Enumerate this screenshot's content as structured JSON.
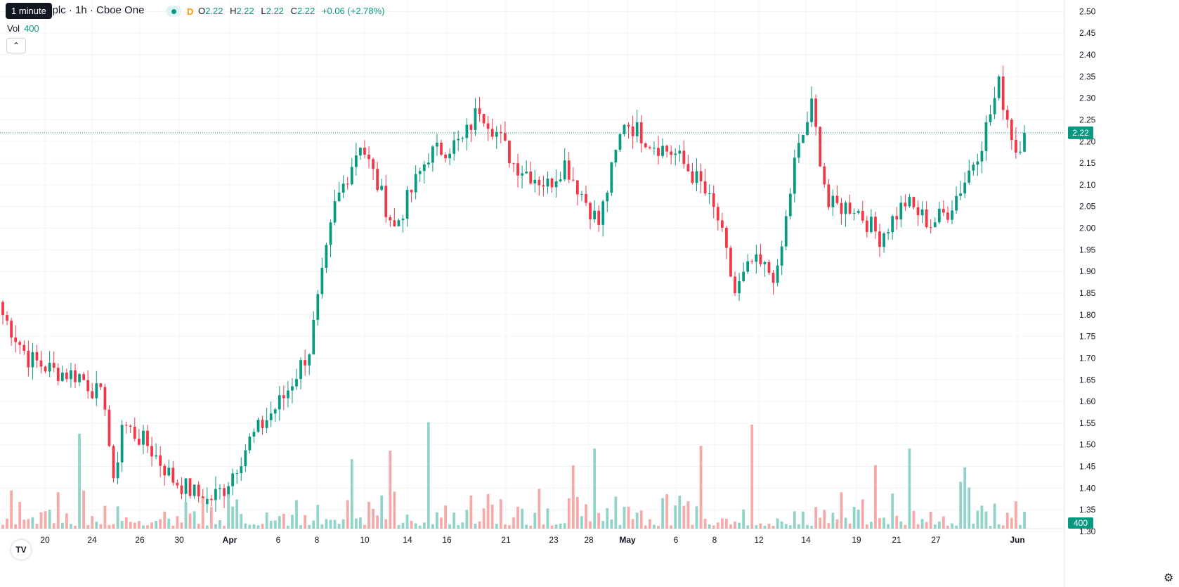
{
  "header": {
    "tooltip": "1 minute",
    "title": "a plc · 1h · Cboe One",
    "interval_letter": "D",
    "ohlc": {
      "o_label": "O",
      "o": "2.22",
      "h_label": "H",
      "h": "2.22",
      "l_label": "L",
      "l": "2.22",
      "c_label": "C",
      "c": "2.22",
      "change": "+0.06 (+2.78%)"
    },
    "volume_label": "Vol",
    "volume_value": "400",
    "collapse_icon": "chevron-up-icon"
  },
  "footer": {
    "logo_text": "TV",
    "settings_icon": "gear-icon"
  },
  "colors": {
    "up": "#089981",
    "down": "#f23645",
    "vol_up": "#8fd3c9",
    "vol_down": "#f7a9a7",
    "grid": "#f0f3fa",
    "price_line": "#089981"
  },
  "chart_data": {
    "type": "candlestick",
    "y_axis": {
      "min": 1.24,
      "max": 2.52,
      "ticks": [
        "2.50",
        "2.45",
        "2.40",
        "2.35",
        "2.30",
        "2.25",
        "2.20",
        "2.15",
        "2.10",
        "2.05",
        "2.00",
        "1.95",
        "1.90",
        "1.85",
        "1.80",
        "1.75",
        "1.70",
        "1.65",
        "1.60",
        "1.55",
        "1.50",
        "1.45",
        "1.40",
        "1.35",
        "1.30"
      ]
    },
    "x_axis": {
      "labels": [
        "20",
        "24",
        "26",
        "30",
        "Apr",
        "6",
        "8",
        "10",
        "14",
        "16",
        "21",
        "23",
        "28",
        "May",
        "6",
        "8",
        "12",
        "14",
        "19",
        "21",
        "27",
        "Jun"
      ]
    },
    "last_price": "2.22",
    "last_volume": "400",
    "anchors": [
      {
        "i": 0,
        "c": 1.8
      },
      {
        "i": 6,
        "c": 1.7
      },
      {
        "i": 12,
        "c": 1.67
      },
      {
        "i": 18,
        "c": 1.66
      },
      {
        "i": 24,
        "c": 1.6
      },
      {
        "i": 26,
        "c": 1.4
      },
      {
        "i": 28,
        "c": 1.55
      },
      {
        "i": 34,
        "c": 1.5
      },
      {
        "i": 40,
        "c": 1.42
      },
      {
        "i": 48,
        "c": 1.37
      },
      {
        "i": 52,
        "c": 1.4
      },
      {
        "i": 58,
        "c": 1.51
      },
      {
        "i": 66,
        "c": 1.61
      },
      {
        "i": 72,
        "c": 1.72
      },
      {
        "i": 78,
        "c": 2.05
      },
      {
        "i": 84,
        "c": 2.2
      },
      {
        "i": 92,
        "c": 2.0
      },
      {
        "i": 100,
        "c": 2.17
      },
      {
        "i": 108,
        "c": 2.2
      },
      {
        "i": 112,
        "c": 2.28
      },
      {
        "i": 116,
        "c": 2.22
      },
      {
        "i": 120,
        "c": 2.15
      },
      {
        "i": 128,
        "c": 2.1
      },
      {
        "i": 132,
        "c": 2.15
      },
      {
        "i": 140,
        "c": 2.01
      },
      {
        "i": 146,
        "c": 2.25
      },
      {
        "i": 152,
        "c": 2.2
      },
      {
        "i": 158,
        "c": 2.17
      },
      {
        "i": 164,
        "c": 2.1
      },
      {
        "i": 168,
        "c": 2.02
      },
      {
        "i": 172,
        "c": 1.85
      },
      {
        "i": 176,
        "c": 1.92
      },
      {
        "i": 182,
        "c": 1.89
      },
      {
        "i": 186,
        "c": 2.15
      },
      {
        "i": 190,
        "c": 2.28
      },
      {
        "i": 194,
        "c": 2.05
      },
      {
        "i": 200,
        "c": 2.05
      },
      {
        "i": 206,
        "c": 1.98
      },
      {
        "i": 212,
        "c": 2.06
      },
      {
        "i": 218,
        "c": 2.01
      },
      {
        "i": 222,
        "c": 2.04
      },
      {
        "i": 226,
        "c": 2.11
      },
      {
        "i": 230,
        "c": 2.2
      },
      {
        "i": 234,
        "c": 2.33
      },
      {
        "i": 238,
        "c": 2.18
      },
      {
        "i": 240,
        "c": 2.22
      }
    ]
  }
}
